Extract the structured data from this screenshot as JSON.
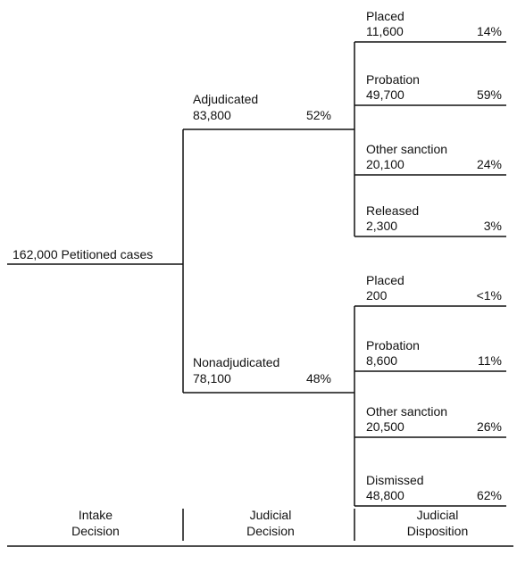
{
  "root": {
    "label": "162,000 Petitioned cases"
  },
  "branches": [
    {
      "label": "Adjudicated",
      "count": "83,800",
      "percent": "52%",
      "leaves": [
        {
          "label": "Placed",
          "count": "11,600",
          "percent": "14%"
        },
        {
          "label": "Probation",
          "count": "49,700",
          "percent": "59%"
        },
        {
          "label": "Other sanction",
          "count": "20,100",
          "percent": "24%"
        },
        {
          "label": "Released",
          "count": "2,300",
          "percent": "3%"
        }
      ]
    },
    {
      "label": "Nonadjudicated",
      "count": "78,100",
      "percent": "48%",
      "leaves": [
        {
          "label": "Placed",
          "count": "200",
          "percent": "<1%"
        },
        {
          "label": "Probation",
          "count": "8,600",
          "percent": "11%"
        },
        {
          "label": "Other sanction",
          "count": "20,500",
          "percent": "26%"
        },
        {
          "label": "Dismissed",
          "count": "48,800",
          "percent": "62%"
        }
      ]
    }
  ],
  "footer": {
    "columns": [
      [
        "Intake",
        "Decision"
      ],
      [
        "Judicial",
        "Decision"
      ],
      [
        "Judicial",
        "Disposition"
      ]
    ]
  }
}
